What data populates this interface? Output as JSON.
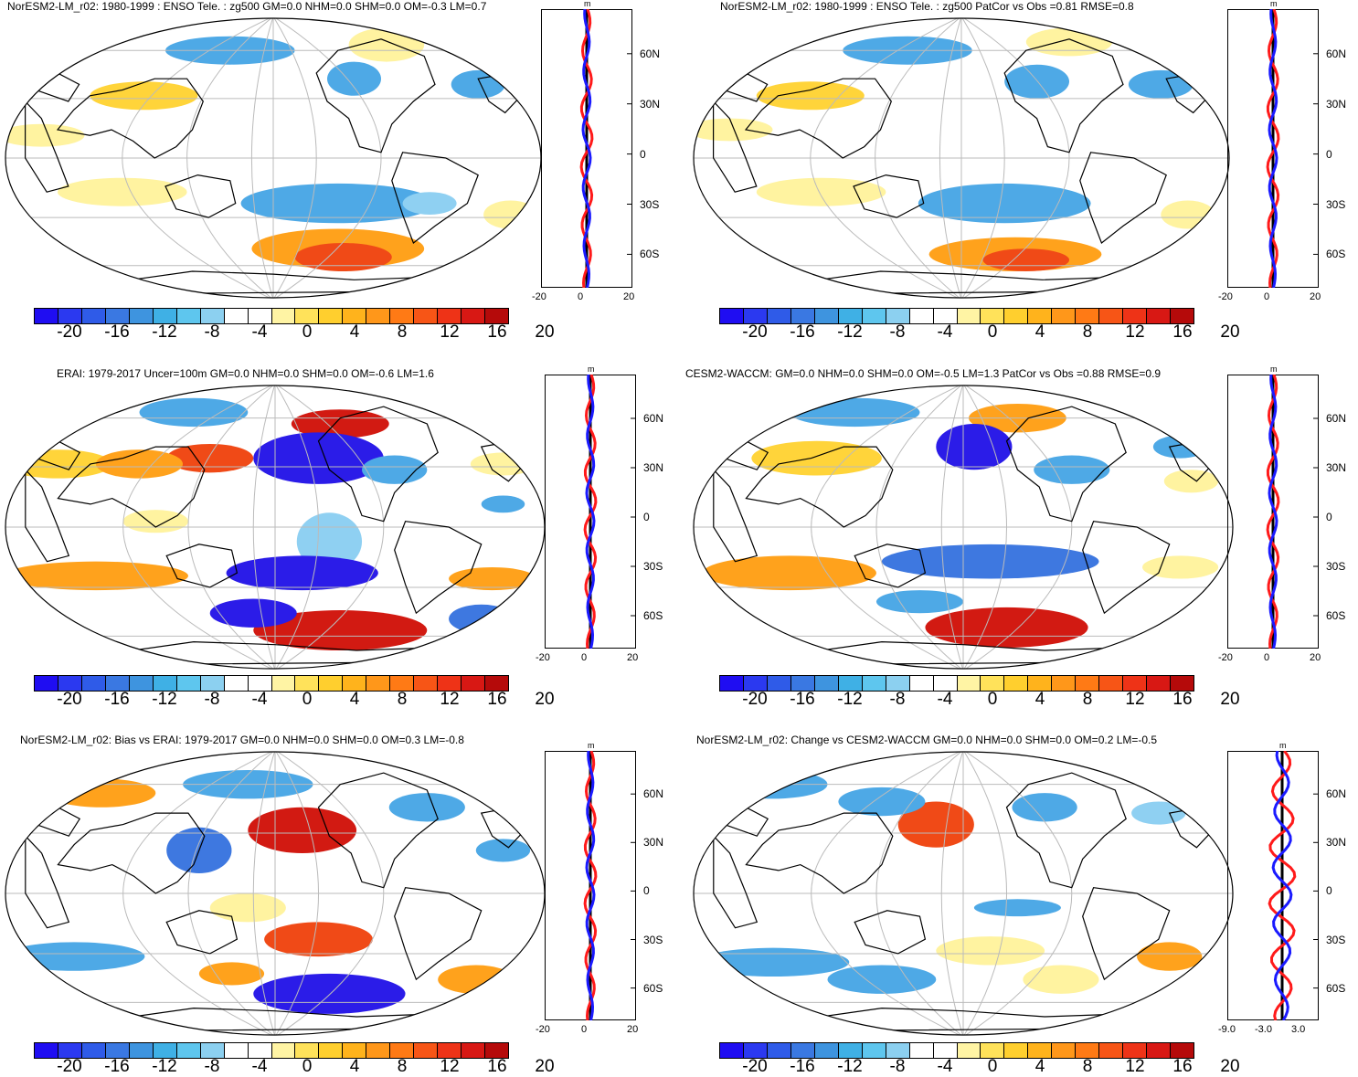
{
  "panels": [
    {
      "id": "p1",
      "title": "NorESM2-LM_r02: 1980-1999 : ENSO Tele. : zg500 GM=0.0 NHM=0.0 SHM=0.0 OM=-0.3 LM=0.7",
      "zonal_ticks": [
        "-20",
        "0",
        "20"
      ],
      "zonal_unit": "m",
      "zonal_range": [
        -20,
        20
      ]
    },
    {
      "id": "p2",
      "title": "NorESM2-LM_r02: 1980-1999 : ENSO Tele. : zg500 PatCor vs Obs =0.81 RMSE=0.8",
      "zonal_ticks": [
        "-20",
        "0",
        "20"
      ],
      "zonal_unit": "m",
      "zonal_range": [
        -20,
        20
      ]
    },
    {
      "id": "p3",
      "title": "ERAI: 1979-2017 Uncer=100m GM=0.0 NHM=0.0 SHM=0.0 OM=-0.6 LM=1.6",
      "zonal_ticks": [
        "-20",
        "0",
        "20"
      ],
      "zonal_unit": "m",
      "zonal_range": [
        -20,
        20
      ]
    },
    {
      "id": "p4",
      "title": "CESM2-WACCM: GM=0.0 NHM=0.0 SHM=0.0 OM=-0.5 LM=1.3 PatCor vs Obs =0.88 RMSE=0.9",
      "zonal_ticks": [
        "-20",
        "0",
        "20"
      ],
      "zonal_unit": "m",
      "zonal_range": [
        -20,
        20
      ]
    },
    {
      "id": "p5",
      "title": "NorESM2-LM_r02: Bias vs ERAI: 1979-2017 GM=0.0 NHM=0.0 SHM=0.0 OM=0.3 LM=-0.8",
      "zonal_ticks": [
        "-20",
        "0",
        "20"
      ],
      "zonal_unit": "m",
      "zonal_range": [
        -20,
        20
      ]
    },
    {
      "id": "p6",
      "title": "NorESM2-LM_r02: Change vs CESM2-WACCM GM=0.0 NHM=0.0 SHM=0.0 OM=0.2 LM=-0.5",
      "zonal_ticks": [
        "-9.0",
        "-3.0",
        "3.0"
      ],
      "zonal_unit": "m",
      "zonal_range": [
        -9,
        6
      ]
    }
  ],
  "lat_labels": [
    "60N",
    "30N",
    "0",
    "30S",
    "60S"
  ],
  "colorbar": {
    "labels": [
      "-20",
      "-16",
      "-12",
      "-8",
      "-4",
      "0",
      "4",
      "8",
      "12",
      "16",
      "20"
    ],
    "colors": [
      "#1f0df2",
      "#2b39f0",
      "#2f5be8",
      "#3a78e2",
      "#3e94df",
      "#3fb0e5",
      "#5ec6ee",
      "#8cd0f0",
      "#ffffff",
      "#ffffff",
      "#fff4a4",
      "#ffe25a",
      "#ffcf2e",
      "#ffb31c",
      "#ff971a",
      "#ff7a15",
      "#f75516",
      "#ee3317",
      "#d81814",
      "#b50a0a"
    ]
  }
}
